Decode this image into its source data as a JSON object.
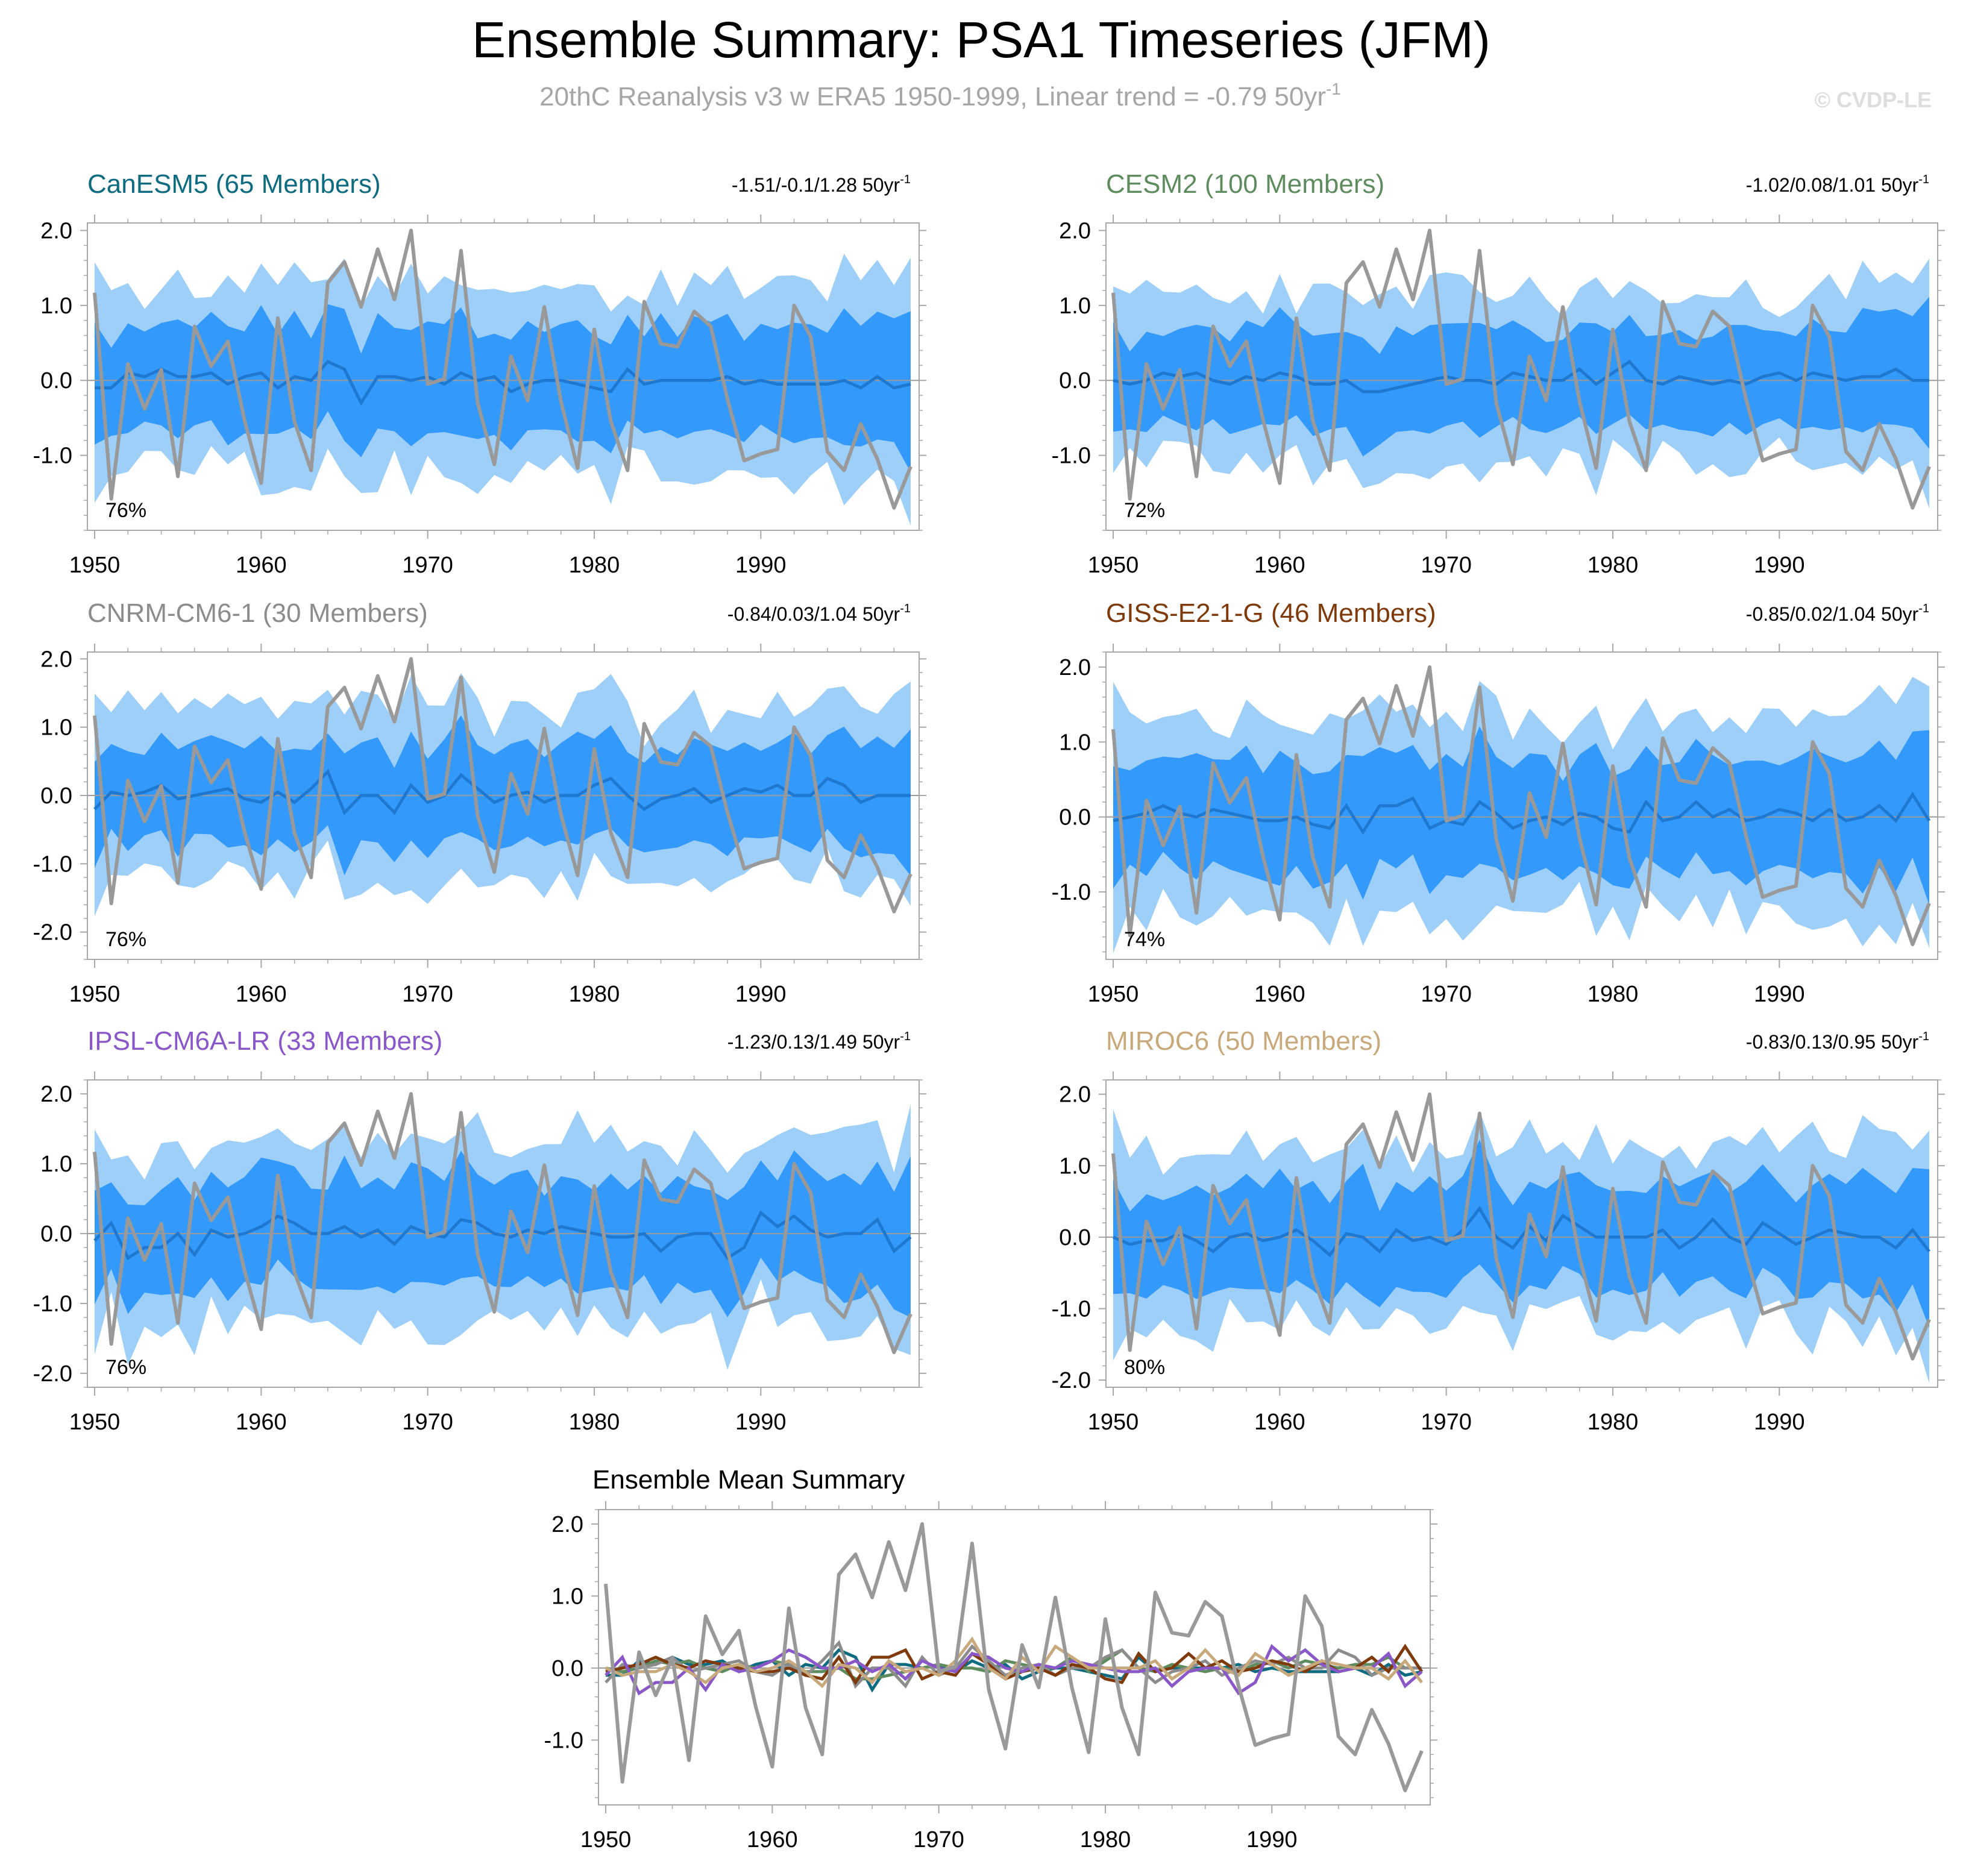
{
  "title": "Ensemble Summary: PSA1 Timeseries (JFM)",
  "subtitle": "20thC Reanalysis v3 w ERA5 1950-1999, Linear trend = -0.79 50yr",
  "subtitle_superscript": "-1",
  "watermark": "© CVDP-LE",
  "colors": {
    "obs": "#999999",
    "band_outer": "#9ecff8",
    "band_inner": "#3399fb",
    "ens_mean_line": "#1f78d0",
    "zero_line": "#9a9a9a",
    "axis": "#a8a8a8",
    "canesm5": "#0e6b80",
    "cesm2": "#5e8c5e",
    "cnrm": "#8c8c8c",
    "giss": "#7f3a0c",
    "ipsl": "#8a57c9",
    "miroc6": "#c8a97c"
  },
  "chart_data": [
    {
      "type": "area",
      "panel": "canesm5",
      "title": "CanESM5 (65 Members)",
      "title_color_key": "canesm5",
      "trend_label": "-1.51/-0.1/1.28 50yr",
      "trend_sup": "-1",
      "percent": "76%",
      "xlim": [
        1950,
        1999
      ],
      "ylim": [
        -2.0,
        2.1
      ],
      "xticks": [
        "1950",
        "1960",
        "1970",
        "1980",
        "1990"
      ],
      "yticks": [
        "2.0",
        "1.0",
        "0.0",
        "-1.0"
      ],
      "ytick_values": [
        2.0,
        1.0,
        0.0,
        -1.0
      ],
      "seed": 11,
      "band_scale": 1.0
    },
    {
      "type": "area",
      "panel": "cesm2",
      "title": "CESM2 (100 Members)",
      "title_color_key": "cesm2",
      "trend_label": "-1.02/0.08/1.01 50yr",
      "trend_sup": "-1",
      "percent": "72%",
      "xlim": [
        1950,
        1999
      ],
      "ylim": [
        -2.0,
        2.1
      ],
      "xticks": [
        "1950",
        "1960",
        "1970",
        "1980",
        "1990"
      ],
      "yticks": [
        "2.0",
        "1.0",
        "0.0",
        "-1.0"
      ],
      "ytick_values": [
        2.0,
        1.0,
        0.0,
        -1.0
      ],
      "seed": 23,
      "band_scale": 0.9
    },
    {
      "type": "area",
      "panel": "cnrm",
      "title": "CNRM-CM6-1 (30 Members)",
      "title_color_key": "cnrm",
      "trend_label": "-0.84/0.03/1.04 50yr",
      "trend_sup": "-1",
      "percent": "76%",
      "xlim": [
        1950,
        1999
      ],
      "ylim": [
        -2.4,
        2.1
      ],
      "xticks": [
        "1950",
        "1960",
        "1970",
        "1980",
        "1990"
      ],
      "yticks": [
        "2.0",
        "1.0",
        "0.0",
        "-1.0",
        "-2.0"
      ],
      "ytick_values": [
        2.0,
        1.0,
        0.0,
        -1.0,
        -2.0
      ],
      "seed": 37,
      "band_scale": 1.0
    },
    {
      "type": "area",
      "panel": "giss",
      "title": "GISS-E2-1-G (46 Members)",
      "title_color_key": "giss",
      "trend_label": "-0.85/0.02/1.04 50yr",
      "trend_sup": "-1",
      "percent": "74%",
      "xlim": [
        1950,
        1999
      ],
      "ylim": [
        -1.9,
        2.2
      ],
      "xticks": [
        "1950",
        "1960",
        "1970",
        "1980",
        "1990"
      ],
      "yticks": [
        "2.0",
        "1.0",
        "0.0",
        "-1.0"
      ],
      "ytick_values": [
        2.0,
        1.0,
        0.0,
        -1.0
      ],
      "seed": 41,
      "band_scale": 1.05
    },
    {
      "type": "area",
      "panel": "ipsl",
      "title": "IPSL-CM6A-LR (33 Members)",
      "title_color_key": "ipsl",
      "trend_label": "-1.23/0.13/1.49 50yr",
      "trend_sup": "-1",
      "percent": "76%",
      "xlim": [
        1950,
        1999
      ],
      "ylim": [
        -2.2,
        2.2
      ],
      "xticks": [
        "1950",
        "1960",
        "1970",
        "1980",
        "1990"
      ],
      "yticks": [
        "2.0",
        "1.0",
        "0.0",
        "-1.0",
        "-2.0"
      ],
      "ytick_values": [
        2.0,
        1.0,
        0.0,
        -1.0,
        -2.0
      ],
      "seed": 53,
      "band_scale": 1.05
    },
    {
      "type": "area",
      "panel": "miroc6",
      "title": "MIROC6 (50 Members)",
      "title_color_key": "miroc6",
      "trend_label": "-0.83/0.13/0.95 50yr",
      "trend_sup": "-1",
      "percent": "80%",
      "xlim": [
        1950,
        1999
      ],
      "ylim": [
        -2.1,
        2.2
      ],
      "xticks": [
        "1950",
        "1960",
        "1970",
        "1980",
        "1990"
      ],
      "yticks": [
        "2.0",
        "1.0",
        "0.0",
        "-1.0",
        "-2.0"
      ],
      "ytick_values": [
        2.0,
        1.0,
        0.0,
        -1.0,
        -2.0
      ],
      "seed": 67,
      "band_scale": 1.0
    },
    {
      "type": "line",
      "panel": "ensmean",
      "title": "Ensemble Mean Summary",
      "xlim": [
        1950,
        1999
      ],
      "ylim": [
        -1.9,
        2.2
      ],
      "xticks": [
        "1950",
        "1960",
        "1970",
        "1980",
        "1990"
      ],
      "yticks": [
        "2.0",
        "1.0",
        "0.0",
        "-1.0"
      ],
      "ytick_values": [
        2.0,
        1.0,
        0.0,
        -1.0
      ],
      "series_keys": [
        "canesm5",
        "cesm2",
        "cnrm",
        "giss",
        "ipsl",
        "miroc6"
      ]
    }
  ],
  "obs": {
    "x": [
      1950,
      1951,
      1952,
      1953,
      1954,
      1955,
      1956,
      1957,
      1958,
      1959,
      1960,
      1961,
      1962,
      1963,
      1964,
      1965,
      1966,
      1967,
      1968,
      1969,
      1970,
      1971,
      1972,
      1973,
      1974,
      1975,
      1976,
      1977,
      1978,
      1979,
      1980,
      1981,
      1982,
      1983,
      1984,
      1985,
      1986,
      1987,
      1988,
      1989,
      1990,
      1991,
      1992,
      1993,
      1994,
      1995,
      1996,
      1997,
      1998,
      1999
    ],
    "values": [
      1.17,
      -1.58,
      0.22,
      -0.38,
      0.14,
      -1.28,
      0.72,
      0.19,
      0.52,
      -0.53,
      -1.37,
      0.83,
      -0.55,
      -1.2,
      1.3,
      1.58,
      0.98,
      1.75,
      1.08,
      2.0,
      -0.05,
      0.02,
      1.73,
      -0.3,
      -1.12,
      0.32,
      -0.27,
      0.98,
      -0.28,
      -1.17,
      0.68,
      -0.55,
      -1.2,
      1.05,
      0.49,
      0.45,
      0.92,
      0.72,
      -0.25,
      -1.07,
      -0.98,
      -0.92,
      1.0,
      0.58,
      -0.95,
      -1.2,
      -0.58,
      -1.05,
      -1.7,
      -1.15
    ]
  },
  "ensemble_means": {
    "canesm5": [
      -0.1,
      -0.1,
      0.1,
      0.05,
      0.15,
      0.05,
      0.05,
      0.1,
      -0.05,
      0.05,
      0.1,
      -0.1,
      0.05,
      0.0,
      0.25,
      0.15,
      -0.3,
      0.05,
      0.05,
      0.0,
      0.05,
      -0.05,
      0.1,
      0.0,
      0.05,
      -0.15,
      -0.05,
      0.0,
      0.0,
      -0.05,
      -0.1,
      -0.15,
      0.15,
      -0.05,
      0.0,
      0.0,
      0.0,
      0.0,
      0.05,
      -0.05,
      0.0,
      -0.05,
      -0.05,
      -0.05,
      -0.05,
      0.0,
      -0.1,
      0.05,
      -0.1,
      -0.05
    ],
    "cesm2": [
      0.0,
      -0.05,
      0.0,
      0.1,
      0.05,
      0.1,
      0.0,
      -0.05,
      0.05,
      0.0,
      0.1,
      0.05,
      -0.05,
      -0.05,
      0.0,
      -0.15,
      -0.15,
      -0.1,
      -0.05,
      0.0,
      0.05,
      0.0,
      0.0,
      -0.05,
      0.1,
      0.05,
      0.0,
      0.0,
      0.15,
      -0.05,
      0.1,
      0.25,
      0.0,
      -0.05,
      0.05,
      0.0,
      -0.05,
      0.0,
      -0.05,
      0.05,
      0.1,
      0.0,
      0.1,
      0.05,
      0.0,
      0.05,
      0.05,
      0.15,
      0.0,
      0.0
    ],
    "cnrm": [
      -0.2,
      0.05,
      0.0,
      0.05,
      0.15,
      -0.05,
      0.0,
      0.05,
      0.1,
      -0.05,
      -0.1,
      0.05,
      -0.1,
      0.1,
      0.35,
      -0.25,
      0.0,
      0.0,
      -0.25,
      0.15,
      -0.1,
      0.0,
      0.3,
      0.1,
      -0.1,
      0.0,
      0.05,
      -0.1,
      0.0,
      0.0,
      0.15,
      0.25,
      0.0,
      -0.2,
      -0.05,
      0.0,
      0.1,
      -0.1,
      0.0,
      0.1,
      0.05,
      0.15,
      0.0,
      0.0,
      0.25,
      0.15,
      -0.1,
      0.0,
      0.0,
      0.0
    ],
    "giss": [
      -0.05,
      0.0,
      0.05,
      0.15,
      0.05,
      0.0,
      0.1,
      0.05,
      0.0,
      -0.05,
      -0.05,
      0.0,
      -0.1,
      -0.15,
      0.15,
      -0.2,
      0.15,
      0.15,
      0.25,
      -0.15,
      -0.05,
      -0.1,
      0.2,
      0.05,
      -0.15,
      -0.05,
      0.0,
      -0.1,
      0.05,
      0.0,
      -0.15,
      -0.2,
      0.2,
      -0.05,
      0.0,
      0.2,
      0.0,
      0.1,
      -0.05,
      0.0,
      0.1,
      0.05,
      -0.05,
      0.1,
      -0.05,
      0.0,
      0.15,
      -0.05,
      0.3,
      -0.05
    ],
    "ipsl": [
      -0.1,
      0.15,
      -0.35,
      -0.2,
      -0.2,
      0.0,
      -0.3,
      0.05,
      -0.05,
      0.0,
      0.1,
      0.25,
      0.15,
      0.0,
      0.0,
      0.1,
      -0.05,
      0.05,
      -0.15,
      0.1,
      0.0,
      -0.05,
      0.2,
      0.15,
      0.0,
      -0.05,
      0.05,
      0.0,
      0.1,
      0.05,
      0.0,
      -0.05,
      -0.05,
      0.0,
      -0.25,
      -0.05,
      0.0,
      0.0,
      -0.35,
      -0.2,
      0.3,
      0.1,
      0.25,
      0.05,
      -0.05,
      0.0,
      0.0,
      0.2,
      -0.25,
      -0.05
    ],
    "miroc6": [
      0.0,
      -0.1,
      -0.05,
      -0.05,
      0.05,
      -0.05,
      -0.2,
      0.0,
      0.05,
      -0.05,
      0.0,
      0.1,
      -0.05,
      -0.25,
      0.05,
      0.0,
      -0.2,
      0.1,
      -0.05,
      0.0,
      -0.1,
      0.1,
      0.4,
      0.0,
      -0.15,
      0.15,
      -0.05,
      0.3,
      0.15,
      0.0,
      0.0,
      0.0,
      0.0,
      0.1,
      -0.15,
      0.0,
      0.25,
      0.0,
      -0.1,
      0.2,
      0.05,
      -0.1,
      0.0,
      0.1,
      0.05,
      0.0,
      0.0,
      -0.15,
      0.1,
      -0.2
    ]
  },
  "band_spread": {
    "outer": [
      1.6,
      1.1,
      1.3,
      1.1,
      1.2,
      1.3,
      1.2,
      1.1,
      1.3,
      1.2,
      1.4,
      1.2,
      1.3,
      1.3,
      1.2,
      1.5,
      1.3,
      1.3,
      1.2,
      1.4,
      1.3,
      1.3,
      1.4,
      1.3,
      1.2,
      1.3,
      1.2,
      1.2,
      1.1,
      1.4,
      1.2,
      1.3,
      1.2,
      1.1,
      1.3,
      1.2,
      1.3,
      1.2,
      1.3,
      1.2,
      1.1,
      1.3,
      1.4,
      1.3,
      1.2,
      1.5,
      1.3,
      1.4,
      1.3,
      1.7
    ],
    "inner": [
      0.8,
      0.6,
      0.75,
      0.6,
      0.7,
      0.8,
      0.65,
      0.7,
      0.8,
      0.7,
      0.85,
      0.65,
      0.75,
      0.7,
      0.7,
      0.9,
      0.7,
      0.75,
      0.7,
      0.8,
      0.75,
      0.7,
      0.85,
      0.7,
      0.7,
      0.75,
      0.7,
      0.65,
      0.7,
      0.8,
      0.7,
      0.75,
      0.7,
      0.65,
      0.75,
      0.7,
      0.75,
      0.7,
      0.8,
      0.7,
      0.65,
      0.7,
      0.8,
      0.75,
      0.7,
      0.9,
      0.8,
      0.85,
      0.8,
      1.1
    ]
  }
}
